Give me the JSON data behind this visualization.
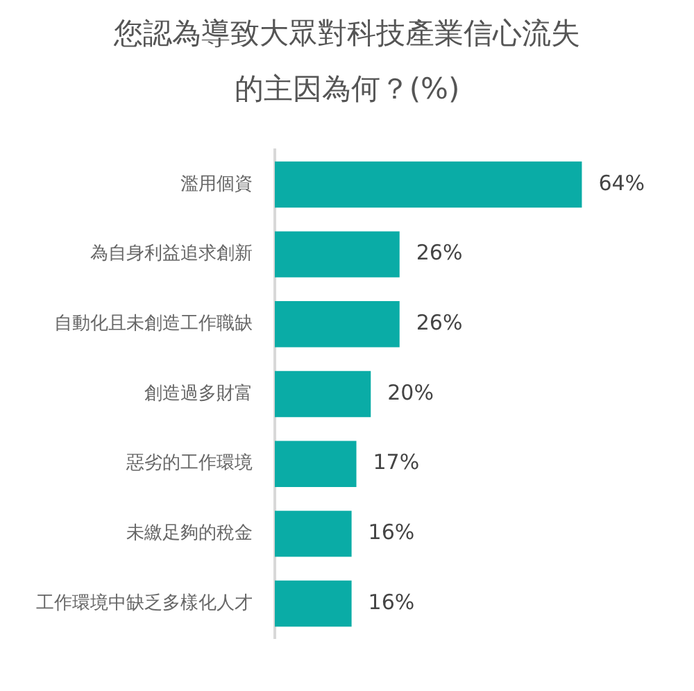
{
  "chart_data": {
    "type": "bar",
    "orientation": "horizontal",
    "title": "您認為導致大眾對科技產業信心流失的主因為何？(%)",
    "categories": [
      "濫用個資",
      "為自身利益追求創新",
      "自動化且未創造工作職缺",
      "創造過多財富",
      "惡劣的工作環境",
      "未繳足夠的稅金",
      "工作環境中缺乏多樣化人才"
    ],
    "values": [
      64,
      26,
      26,
      20,
      17,
      16,
      16
    ],
    "value_labels": [
      "64%",
      "26%",
      "26%",
      "20%",
      "17%",
      "16%",
      "16%"
    ],
    "color": "#0aaca6",
    "tick_labels": "y"
  }
}
